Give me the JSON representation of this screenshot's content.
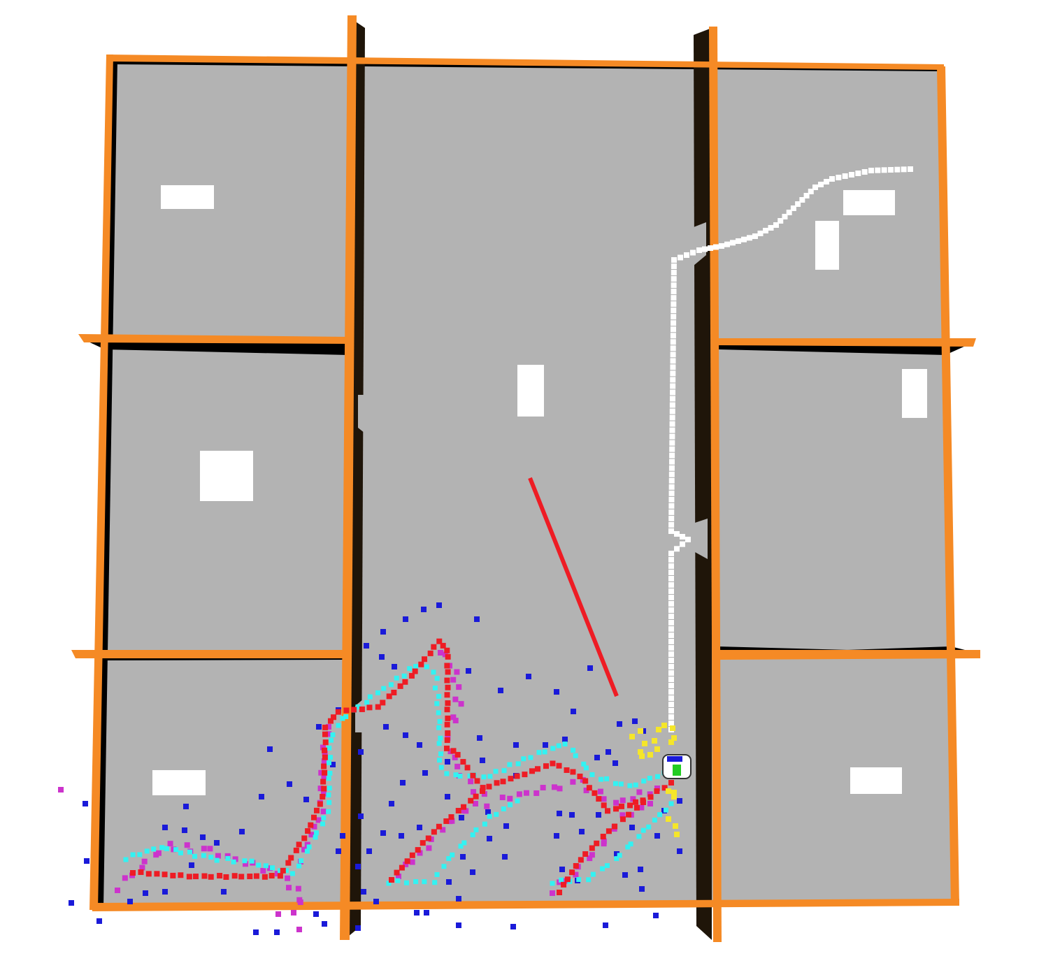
{
  "scene": {
    "colors": {
      "background": "#ffffff",
      "floor": "#b3b3b3",
      "wall_top": "#f58a25",
      "wall_shadow": "#000000",
      "wall_dark": "#1f1509",
      "obstacle": "#ffffff",
      "path_white": "#ffffff",
      "path_red": "#ee1c24",
      "path_cyan": "#33f2f2",
      "path_magenta": "#cc33cc",
      "scatter_blue": "#1a1ad9",
      "scatter_yellow": "#f5e62a",
      "robot_body": "#ffffff",
      "robot_sensor": "#22cc22",
      "robot_head": "#1a1ad9"
    },
    "icons": [
      "robot-icon"
    ]
  }
}
